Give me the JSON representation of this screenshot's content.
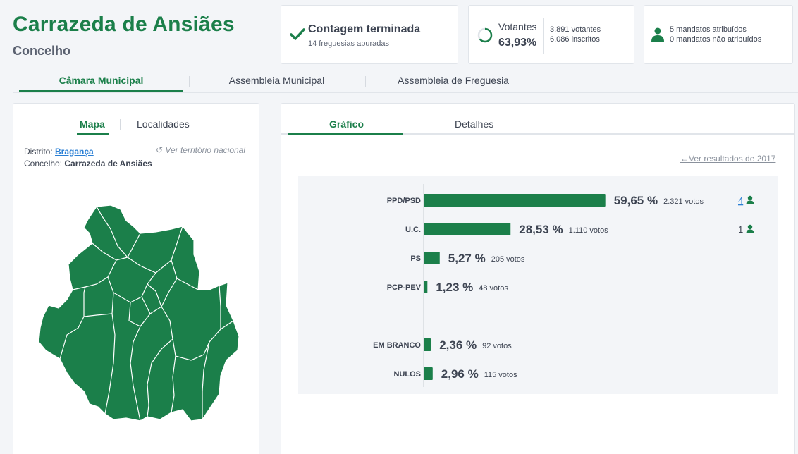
{
  "header": {
    "title": "Carrazeda de Ansiães",
    "subtitle": "Concelho"
  },
  "status": {
    "title": "Contagem terminada",
    "subtitle": "14 freguesias apuradas"
  },
  "votantes": {
    "label": "Votantes",
    "percent": "63,93%",
    "percent_value": 63.93,
    "votantes": "3.891 votantes",
    "inscritos": "6.086 inscritos"
  },
  "mandatos": {
    "attributed": "5 mandatos atribuídos",
    "not_attributed": "0 mandatos não atribuídos"
  },
  "main_tabs": [
    {
      "label": "Câmara Municipal",
      "active": true
    },
    {
      "label": "Assembleia Municipal",
      "active": false
    },
    {
      "label": "Assembleia de Freguesia",
      "active": false
    }
  ],
  "map_panel": {
    "tabs": [
      {
        "label": "Mapa",
        "active": true
      },
      {
        "label": "Localidades",
        "active": false
      }
    ],
    "district_label": "Distrito:",
    "district_value": "Bragança",
    "council_label": "Concelho:",
    "council_value": "Carrazeda de Ansiães",
    "national_link": "Ver território nacional"
  },
  "chart_panel": {
    "tabs": [
      {
        "label": "Gráfico",
        "active": true
      },
      {
        "label": "Detalhes",
        "active": false
      }
    ],
    "previous_link": "Ver resultados de 2017"
  },
  "colors": {
    "accent": "#1b7f4a",
    "text": "#3d4452",
    "link": "#2a7fd4"
  },
  "chart_data": {
    "type": "bar",
    "orientation": "horizontal",
    "categories": [
      "PPD/PSD",
      "U.C.",
      "PS",
      "PCP-PEV",
      "EM BRANCO",
      "NULOS"
    ],
    "values": [
      59.65,
      28.53,
      5.27,
      1.23,
      2.36,
      2.96
    ],
    "value_labels": [
      "59,65 %",
      "28,53 %",
      "5,27 %",
      "1,23 %",
      "2,36 %",
      "2,96 %"
    ],
    "votes": [
      "2.321 votos",
      "1.110 votos",
      "205 votos",
      "48 votos",
      "92 votos",
      "115 votos"
    ],
    "mandates": [
      "4",
      "1",
      "",
      "",
      "",
      ""
    ],
    "xlim": [
      0,
      100
    ]
  }
}
